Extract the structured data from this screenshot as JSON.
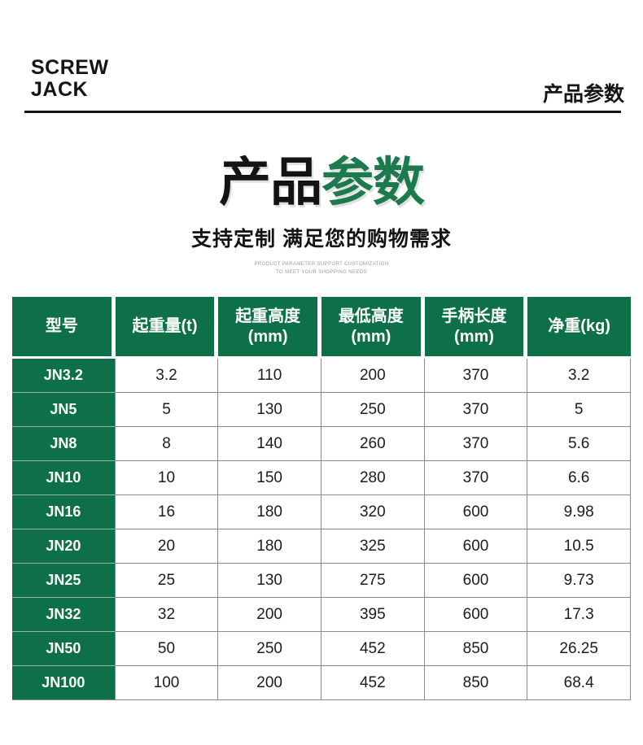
{
  "brand": {
    "line1": "SCREW",
    "line2": "JACK"
  },
  "corner_label": "产品参数",
  "hero": {
    "title_black": "产品",
    "title_green": "参数",
    "subtitle": "支持定制 满足您的购物需求",
    "tagline_line1": "PRODUCT PARAMETER SUPPORT CUSTOMIZATION",
    "tagline_line2": "TO MEET YOUR SHOPPING NEEDS"
  },
  "colors": {
    "table_green": "#0E7049",
    "title_green": "#1B7A4E",
    "body_border_gray": "#8A8A8A",
    "tagline_gray": "#9B9B9B",
    "text_black": "#131313"
  },
  "chart_data": {
    "type": "table",
    "title": "产品参数",
    "subtitle": "支持定制 满足您的购物需求",
    "columns": [
      {
        "line1": "型号",
        "line2": ""
      },
      {
        "line1": "起重量(t)",
        "line2": ""
      },
      {
        "line1": "起重高度",
        "line2": "(mm)"
      },
      {
        "line1": "最低高度",
        "line2": "(mm)"
      },
      {
        "line1": "手柄长度",
        "line2": "(mm)"
      },
      {
        "line1": "净重(kg)",
        "line2": ""
      }
    ],
    "rows": [
      [
        "JN3.2",
        "3.2",
        "110",
        "200",
        "370",
        "3.2"
      ],
      [
        "JN5",
        "5",
        "130",
        "250",
        "370",
        "5"
      ],
      [
        "JN8",
        "8",
        "140",
        "260",
        "370",
        "5.6"
      ],
      [
        "JN10",
        "10",
        "150",
        "280",
        "370",
        "6.6"
      ],
      [
        "JN16",
        "16",
        "180",
        "320",
        "600",
        "9.98"
      ],
      [
        "JN20",
        "20",
        "180",
        "325",
        "600",
        "10.5"
      ],
      [
        "JN25",
        "25",
        "130",
        "275",
        "600",
        "9.73"
      ],
      [
        "JN32",
        "32",
        "200",
        "395",
        "600",
        "17.3"
      ],
      [
        "JN50",
        "50",
        "250",
        "452",
        "850",
        "26.25"
      ],
      [
        "JN100",
        "100",
        "200",
        "452",
        "850",
        "68.4"
      ]
    ]
  }
}
